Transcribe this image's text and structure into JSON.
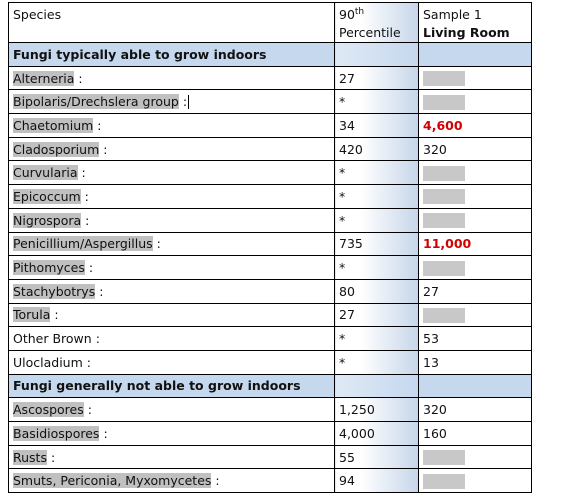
{
  "header": {
    "species": "Species",
    "pct_top": "90",
    "pct_sup": "th",
    "pct_bottom": "Percentile",
    "sample_top": "Sample 1",
    "sample_bottom": "Living Room"
  },
  "section_indoor": "Fungi typically able to grow indoors",
  "rows_indoor": [
    {
      "name": "Alterneria",
      "suffix": ":",
      "pct": "27",
      "sample": "",
      "red": false
    },
    {
      "name": "Bipolaris/Drechslera group",
      "suffix": ":",
      "pct": "*",
      "sample": "",
      "red": false
    },
    {
      "name": "Chaetomium",
      "suffix": ":",
      "pct": "34",
      "sample": "4,600",
      "red": true
    },
    {
      "name": "Cladosporium",
      "suffix": ":",
      "pct": "420",
      "sample": "320",
      "red": false
    },
    {
      "name": "Curvularia",
      "suffix": ":",
      "pct": "*",
      "sample": "",
      "red": false
    },
    {
      "name": "Epicoccum",
      "suffix": ":",
      "pct": "*",
      "sample": "",
      "red": false
    },
    {
      "name": "Nigrospora",
      "suffix": ":",
      "pct": "*",
      "sample": "",
      "red": false
    },
    {
      "name": "Penicillium/Aspergillus",
      "suffix": ":",
      "pct": "735",
      "sample": "11,000",
      "red": true
    },
    {
      "name": "Pithomyces",
      "suffix": ":",
      "pct": "*",
      "sample": "",
      "red": false
    },
    {
      "name": "Stachybotrys",
      "suffix": ":",
      "pct": "80",
      "sample": "27",
      "red": false
    },
    {
      "name": "Torula",
      "suffix": ":",
      "pct": "27",
      "sample": "",
      "red": false
    },
    {
      "name": "Other Brown",
      "suffix": ":",
      "pct": "*",
      "sample": "53",
      "red": false
    },
    {
      "name": "Ulocladium",
      "suffix": ":",
      "pct": "*",
      "sample": "13",
      "red": false
    }
  ],
  "section_outdoor": "Fungi generally not able to grow indoors",
  "rows_outdoor": [
    {
      "name": "Ascospores",
      "suffix": ":",
      "pct": "1,250",
      "sample": "320",
      "red": false
    },
    {
      "name": "Basidiospores",
      "suffix": ":",
      "pct": "4,000",
      "sample": "160",
      "red": false
    },
    {
      "name": "Rusts",
      "suffix": ":",
      "pct": "55",
      "sample": "",
      "red": false
    },
    {
      "name": "Smuts, Periconia, Myxomycetes",
      "suffix": ":",
      "pct": "94",
      "sample": "",
      "red": false
    }
  ]
}
